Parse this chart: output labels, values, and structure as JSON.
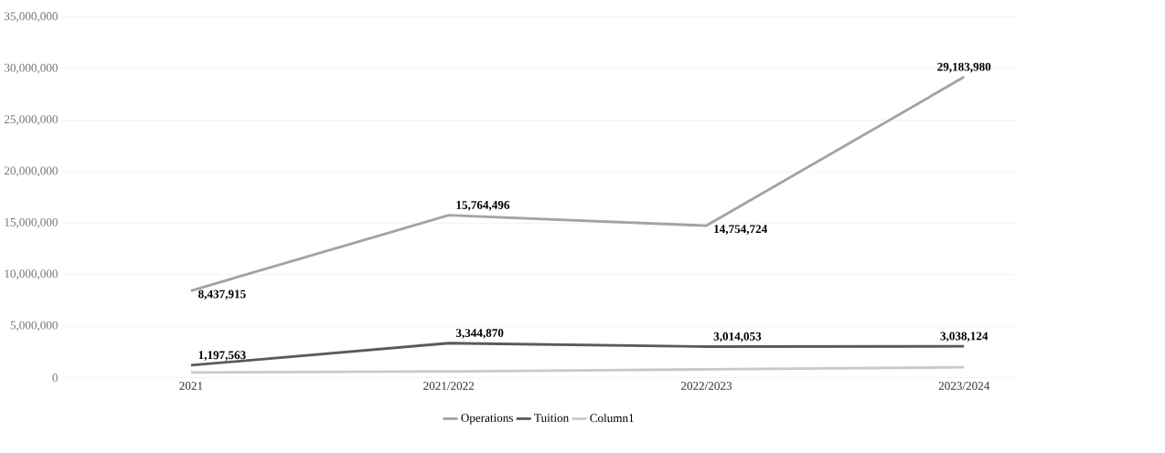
{
  "chart_data": {
    "type": "line",
    "categories": [
      "2021",
      "2021/2022",
      "2022/2023",
      "2023/2024"
    ],
    "series": [
      {
        "name": "Operations",
        "color": "#a3a3a3",
        "values": [
          8437915,
          15764496,
          14754724,
          29183980
        ],
        "value_labels": [
          "8,437,915",
          "15,764,496",
          "14,754,724",
          "29,183,980"
        ]
      },
      {
        "name": "Tuition",
        "color": "#5a5a5a",
        "values": [
          1197563,
          3344870,
          3014053,
          3038124
        ],
        "value_labels": [
          "1,197,563",
          "3,344,870",
          "3,014,053",
          "3,038,124"
        ]
      },
      {
        "name": "Column1",
        "color": "#c8c8d2",
        "values": [
          500000,
          600000,
          800000,
          1000000
        ]
      }
    ],
    "ylim": [
      0,
      35000000
    ],
    "yticks": [
      {
        "value": 0,
        "label": "0"
      },
      {
        "value": 5000000,
        "label": "5,000,000"
      },
      {
        "value": 10000000,
        "label": "10,000,000"
      },
      {
        "value": 15000000,
        "label": "15,000,000"
      },
      {
        "value": 20000000,
        "label": "20,000,000"
      },
      {
        "value": 25000000,
        "label": "25,000,000"
      },
      {
        "value": 30000000,
        "label": "30,000,000"
      },
      {
        "value": 35000000,
        "label": "35,000,000"
      }
    ],
    "grid": "y",
    "legend": "bottom"
  }
}
